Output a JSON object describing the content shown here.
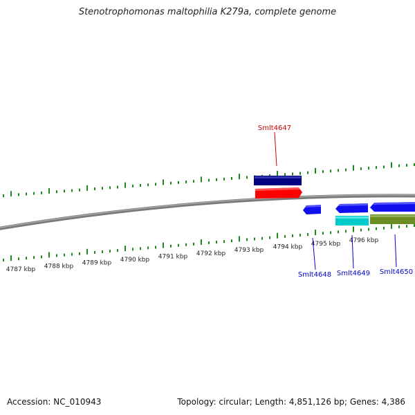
{
  "title": "Stenotrophomonas maltophilia K279a, complete genome",
  "footer": {
    "accession": "Accession: NC_010943",
    "summary": "Topology: circular; Length: 4,851,126 bp; Genes: 4,386"
  },
  "colors": {
    "tick": "#1a8a1a",
    "backbone": "#808080",
    "label_red": "#cc0000",
    "label_blue": "#0000cc",
    "navy": "#000080",
    "red": "#ff0000",
    "blue": "#0000ff",
    "cyan": "#00cccc",
    "olive": "#6b8e23"
  },
  "kbp_labels": [
    "4787 kbp",
    "4788 kbp",
    "4789 kbp",
    "4790 kbp",
    "4791 kbp",
    "4792 kbp",
    "4793 kbp",
    "4794 kbp",
    "4795 kbp",
    "4796 kbp"
  ],
  "gene_labels": {
    "smlt4647": "Smlt4647",
    "smlt4648": "Smlt4648",
    "smlt4649": "Smlt4649",
    "smlt4650": "Smlt4650"
  }
}
